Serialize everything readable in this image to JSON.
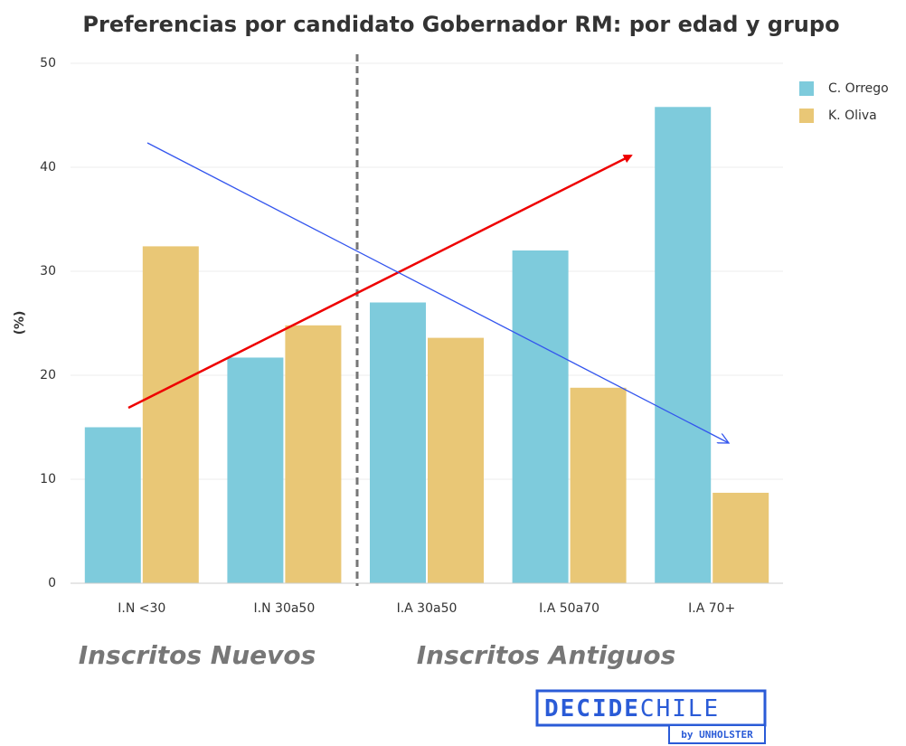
{
  "chart_data": {
    "type": "bar",
    "title": "Preferencias por candidato Gobernador RM: por edad y grupo",
    "y_label": "(%)",
    "categories": [
      "I.N <30",
      "I.N 30a50",
      "I.A 30a50",
      "I.A 50a70",
      "I.A 70+"
    ],
    "series": [
      {
        "name": "C. Orrego",
        "color": "#7ecbdc",
        "values": [
          15,
          21.7,
          27,
          32,
          45.8
        ]
      },
      {
        "name": "K. Oliva",
        "color": "#e9c776",
        "values": [
          32.4,
          24.8,
          23.6,
          18.8,
          8.7
        ]
      }
    ],
    "ylim": [
      0,
      50
    ],
    "yticks": [
      0,
      10,
      20,
      30,
      40,
      50
    ],
    "grid": true,
    "legend": "top-right",
    "annotations": {
      "groups": [
        "Inscritos Nuevos",
        "Inscritos Antiguos"
      ],
      "logo_main": "DECIDE",
      "logo_light": "CHILE",
      "logo_sub": "by UNHOLSTER"
    }
  }
}
